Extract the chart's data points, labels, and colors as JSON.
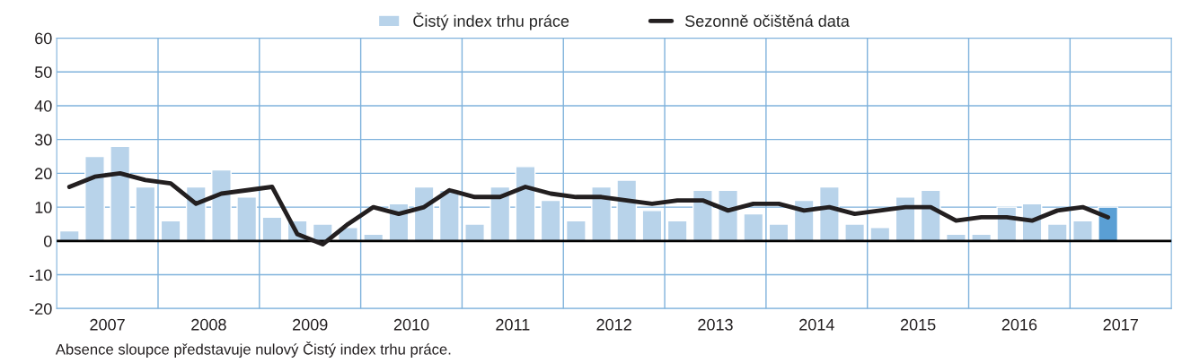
{
  "chart_data": {
    "type": "bar",
    "x": [
      2007.125,
      2007.375,
      2007.625,
      2007.875,
      2008.125,
      2008.375,
      2008.625,
      2008.875,
      2009.125,
      2009.375,
      2009.625,
      2009.875,
      2010.125,
      2010.375,
      2010.625,
      2010.875,
      2011.125,
      2011.375,
      2011.625,
      2011.875,
      2012.125,
      2012.375,
      2012.625,
      2012.875,
      2013.125,
      2013.375,
      2013.625,
      2013.875,
      2014.125,
      2014.375,
      2014.625,
      2014.875,
      2015.125,
      2015.375,
      2015.625,
      2015.875,
      2016.125,
      2016.375,
      2016.625,
      2016.875,
      2017.125,
      2017.375
    ],
    "series": [
      {
        "name": "Čistý index trhu práce",
        "color": "#b8d3ea",
        "values": [
          3,
          25,
          28,
          16,
          6,
          16,
          21,
          13,
          7,
          6,
          5,
          4,
          2,
          11,
          16,
          15,
          5,
          16,
          22,
          12,
          6,
          16,
          18,
          9,
          6,
          15,
          15,
          8,
          5,
          12,
          16,
          5,
          4,
          13,
          15,
          2,
          2,
          10,
          11,
          5,
          6,
          10
        ],
        "colors": [
          "#b8d3ea",
          "#b8d3ea",
          "#b8d3ea",
          "#b8d3ea",
          "#b8d3ea",
          "#b8d3ea",
          "#b8d3ea",
          "#b8d3ea",
          "#b8d3ea",
          "#b8d3ea",
          "#b8d3ea",
          "#b8d3ea",
          "#b8d3ea",
          "#b8d3ea",
          "#b8d3ea",
          "#b8d3ea",
          "#b8d3ea",
          "#b8d3ea",
          "#b8d3ea",
          "#b8d3ea",
          "#b8d3ea",
          "#b8d3ea",
          "#b8d3ea",
          "#b8d3ea",
          "#b8d3ea",
          "#b8d3ea",
          "#b8d3ea",
          "#b8d3ea",
          "#b8d3ea",
          "#b8d3ea",
          "#b8d3ea",
          "#b8d3ea",
          "#b8d3ea",
          "#b8d3ea",
          "#b8d3ea",
          "#b8d3ea",
          "#b8d3ea",
          "#b8d3ea",
          "#b8d3ea",
          "#b8d3ea",
          "#b8d3ea",
          "#5a9fd4"
        ]
      },
      {
        "name": "Sezonně očištěná data",
        "type": "line",
        "color": "#231f20",
        "values": [
          16,
          19,
          20,
          18,
          17,
          11,
          14,
          15,
          16,
          2,
          -1,
          5,
          10,
          8,
          10,
          15,
          13,
          13,
          16,
          14,
          13,
          13,
          12,
          11,
          12,
          12,
          9,
          11,
          11,
          9,
          10,
          8,
          9,
          10,
          10,
          6,
          7,
          7,
          6,
          9,
          10,
          7
        ]
      }
    ],
    "xlim": [
      2007,
      2018
    ],
    "xticks": [
      {
        "value": 2007.5,
        "label": "2007"
      },
      {
        "value": 2008,
        "label": null
      },
      {
        "value": 2008.5,
        "label": "2008"
      },
      {
        "value": 2009,
        "label": null
      },
      {
        "value": 2009.5,
        "label": "2009"
      },
      {
        "value": 2010,
        "label": null
      },
      {
        "value": 2010.5,
        "label": "2010"
      },
      {
        "value": 2011,
        "label": null
      },
      {
        "value": 2011.5,
        "label": "2011"
      },
      {
        "value": 2012,
        "label": null
      },
      {
        "value": 2012.5,
        "label": "2012"
      },
      {
        "value": 2013,
        "label": null
      },
      {
        "value": 2013.5,
        "label": "2013"
      },
      {
        "value": 2014,
        "label": null
      },
      {
        "value": 2014.5,
        "label": "2014"
      },
      {
        "value": 2015,
        "label": null
      },
      {
        "value": 2015.5,
        "label": "2015"
      },
      {
        "value": 2016,
        "label": null
      },
      {
        "value": 2016.5,
        "label": "2016"
      },
      {
        "value": 2017,
        "label": null
      },
      {
        "value": 2017.5,
        "label": "2017"
      }
    ],
    "ylim": [
      -20,
      60
    ],
    "yticks": [
      -20,
      -10,
      0,
      10,
      20,
      30,
      40,
      50,
      60
    ],
    "grid": true,
    "legend": "top",
    "ref_lines": [
      {
        "axis": "y",
        "value": 0,
        "color": "#000000"
      }
    ],
    "annotations": [
      "Absence sloupce představuje nulový Čistý index trhu práce."
    ]
  }
}
